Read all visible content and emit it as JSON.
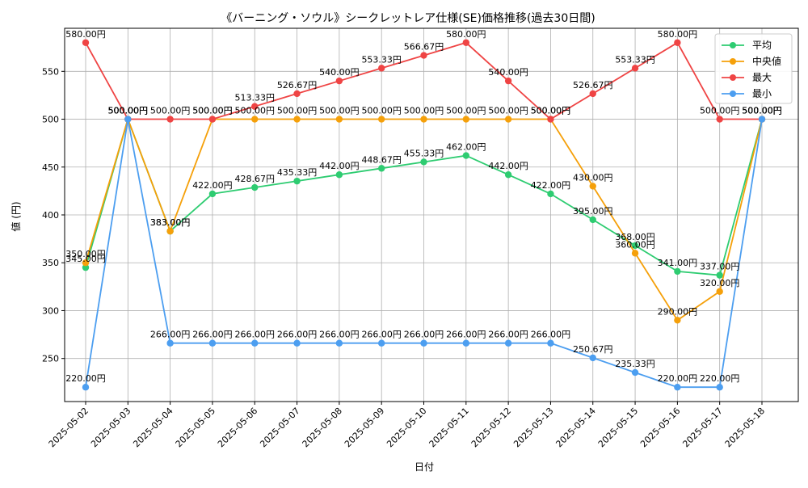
{
  "chart_data": {
    "type": "line",
    "title": "《バーニング・ソウル》シークレットレア仕様(SE)価格推移(過去30日間)",
    "xlabel": "日付",
    "ylabel": "値 (円)",
    "x": [
      "2025-05-02",
      "2025-05-03",
      "2025-05-04",
      "2025-05-05",
      "2025-05-06",
      "2025-05-07",
      "2025-05-08",
      "2025-05-09",
      "2025-05-10",
      "2025-05-11",
      "2025-05-12",
      "2025-05-13",
      "2025-05-14",
      "2025-05-15",
      "2025-05-16",
      "2025-05-17",
      "2025-05-18"
    ],
    "ylim": [
      205,
      595
    ],
    "yticks": [
      250,
      300,
      350,
      400,
      450,
      500,
      550
    ],
    "grid": true,
    "legend_position": "top-right",
    "value_suffix": "円",
    "series": [
      {
        "name": "平均",
        "color": "#2ecc71",
        "values": [
          345,
          500,
          383,
          422,
          428.67,
          435.33,
          442,
          448.67,
          455.33,
          462,
          442,
          422,
          395,
          368,
          341,
          337,
          500
        ],
        "labels": [
          "345.00円",
          "500.00円",
          "383.00円",
          "422.00円",
          "428.67円",
          "435.33円",
          "442.00円",
          "448.67円",
          "455.33円",
          "462.00円",
          "442.00円",
          "422.00円",
          "395.00円",
          "368.00円",
          "341.00円",
          "337.00円",
          "500.00円"
        ]
      },
      {
        "name": "中央値",
        "color": "#f5a00a",
        "values": [
          350,
          500,
          383,
          500,
          500,
          500,
          500,
          500,
          500,
          500,
          500,
          500,
          430,
          360,
          290,
          320,
          500
        ],
        "labels": [
          "350.00円",
          "500.00円",
          "383.00円",
          "500.00円",
          "500.00円",
          "500.00円",
          "500.00円",
          "500.00円",
          "500.00円",
          "500.00円",
          "500.00円",
          "500.00円",
          "430.00円",
          "360.00円",
          "290.00円",
          "320.00円",
          "500.00円"
        ]
      },
      {
        "name": "最大",
        "color": "#ef4444",
        "values": [
          580,
          500,
          500,
          500,
          513.33,
          526.67,
          540,
          553.33,
          566.67,
          580,
          540,
          500,
          526.67,
          553.33,
          580,
          500,
          500
        ],
        "labels": [
          "580.00円",
          "500.00円",
          "500.00円",
          "500.00円",
          "513.33円",
          "526.67円",
          "540.00円",
          "553.33円",
          "566.67円",
          "580.00円",
          "540.00円",
          "500.00円",
          "526.67円",
          "553.33円",
          "580.00円",
          "500.00円",
          "500.00円"
        ]
      },
      {
        "name": "最小",
        "color": "#4c9ef0",
        "values": [
          220,
          500,
          266,
          266,
          266,
          266,
          266,
          266,
          266,
          266,
          266,
          266,
          250.67,
          235.33,
          220,
          220,
          500
        ],
        "labels": [
          "220.00円",
          "500.00円",
          "266.00円",
          "266.00円",
          "266.00円",
          "266.00円",
          "266.00円",
          "266.00円",
          "266.00円",
          "266.00円",
          "266.00円",
          "266.00円",
          "250.67円",
          "235.33円",
          "220.00円",
          "220.00円",
          "500.00円"
        ]
      }
    ]
  }
}
